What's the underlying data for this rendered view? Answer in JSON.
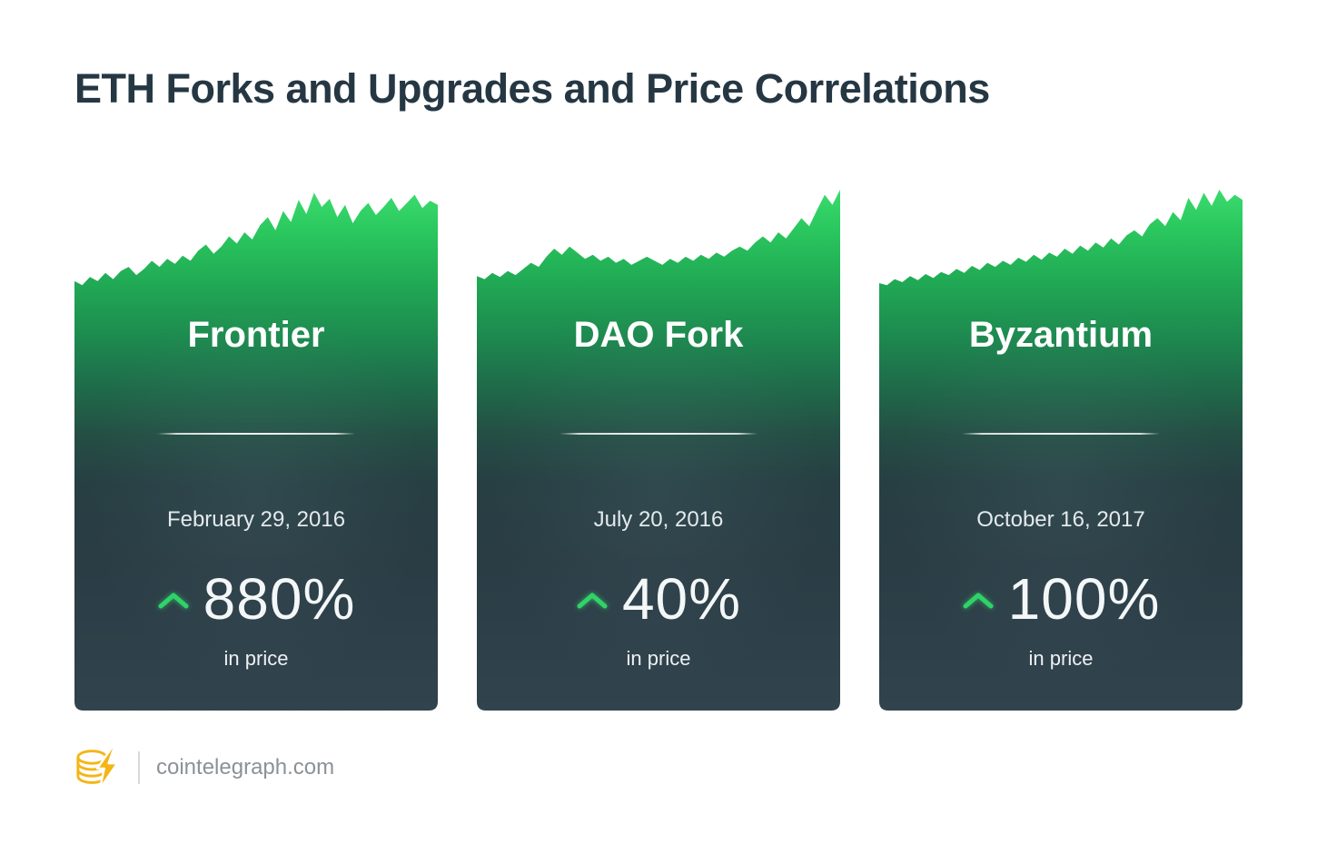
{
  "page": {
    "title": "ETH Forks and Upgrades and Price Correlations",
    "background": "#ffffff"
  },
  "footer": {
    "logo_icon": "cointelegraph-logo",
    "site": "cointelegraph.com"
  },
  "colors": {
    "title_text": "#253743",
    "card_text": "#ffffff",
    "chart_green_top": "#3bdb6e",
    "chart_green": "#2fd368",
    "card_dark": "#2c3d46",
    "logo_yellow": "#f5b515",
    "footer_text": "#8c9196"
  },
  "chart_data": [
    {
      "type": "area",
      "title": "Frontier",
      "date": "February 29, 2016",
      "change_label": "880%",
      "change_percent": 880,
      "direction": "up",
      "caption": "in price",
      "series_name": "ETH price (relative, unlabeled axes)",
      "axes": "none",
      "values": [
        0.1,
        0.06,
        0.14,
        0.1,
        0.18,
        0.12,
        0.2,
        0.24,
        0.16,
        0.22,
        0.3,
        0.24,
        0.32,
        0.27,
        0.35,
        0.3,
        0.4,
        0.46,
        0.37,
        0.44,
        0.54,
        0.47,
        0.58,
        0.51,
        0.65,
        0.73,
        0.6,
        0.79,
        0.68,
        0.9,
        0.76,
        0.97,
        0.83,
        0.91,
        0.73,
        0.85,
        0.67,
        0.79,
        0.87,
        0.75,
        0.83,
        0.92,
        0.79,
        0.87,
        0.95,
        0.82,
        0.89,
        0.85
      ]
    },
    {
      "type": "area",
      "title": "DAO Fork",
      "date": "July 20, 2016",
      "change_label": "40%",
      "change_percent": 40,
      "direction": "up",
      "caption": "in price",
      "series_name": "ETH price (relative, unlabeled axes)",
      "axes": "none",
      "values": [
        0.15,
        0.12,
        0.18,
        0.14,
        0.2,
        0.16,
        0.22,
        0.28,
        0.24,
        0.34,
        0.42,
        0.36,
        0.44,
        0.38,
        0.32,
        0.36,
        0.3,
        0.34,
        0.28,
        0.32,
        0.26,
        0.3,
        0.34,
        0.3,
        0.26,
        0.32,
        0.28,
        0.34,
        0.3,
        0.36,
        0.32,
        0.38,
        0.34,
        0.4,
        0.44,
        0.4,
        0.48,
        0.54,
        0.48,
        0.58,
        0.52,
        0.62,
        0.72,
        0.64,
        0.8,
        0.95,
        0.85,
        1.0
      ]
    },
    {
      "type": "area",
      "title": "Byzantium",
      "date": "October 16, 2017",
      "change_label": "100%",
      "change_percent": 100,
      "direction": "up",
      "caption": "in price",
      "series_name": "ETH price (relative, unlabeled axes)",
      "axes": "none",
      "values": [
        0.08,
        0.06,
        0.12,
        0.09,
        0.15,
        0.11,
        0.17,
        0.13,
        0.19,
        0.16,
        0.22,
        0.18,
        0.25,
        0.21,
        0.28,
        0.24,
        0.3,
        0.26,
        0.33,
        0.29,
        0.36,
        0.31,
        0.38,
        0.34,
        0.42,
        0.37,
        0.45,
        0.4,
        0.48,
        0.43,
        0.52,
        0.46,
        0.55,
        0.6,
        0.54,
        0.66,
        0.72,
        0.64,
        0.78,
        0.7,
        0.92,
        0.8,
        0.97,
        0.84,
        1.0,
        0.88,
        0.95,
        0.9
      ]
    }
  ]
}
